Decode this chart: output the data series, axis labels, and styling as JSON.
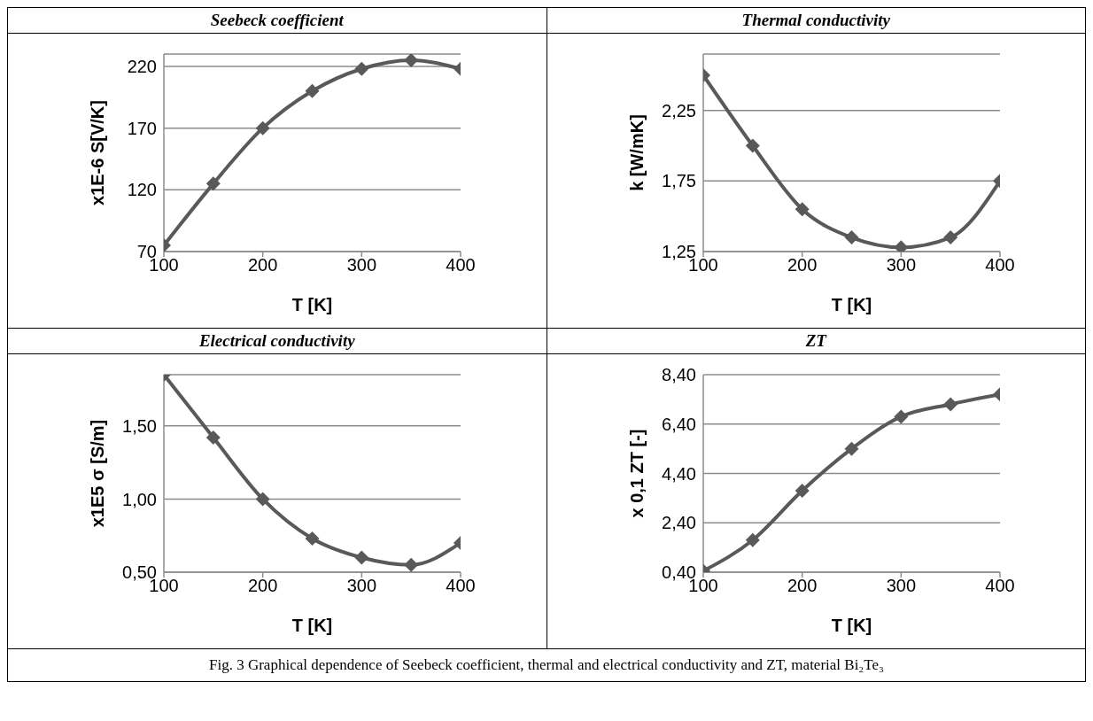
{
  "chart_data": [
    {
      "type": "line",
      "title": "Seebeck coefficient",
      "xlabel": "T [K]",
      "ylabel": "x1E-6 S[V/K]",
      "x": [
        100,
        150,
        200,
        250,
        300,
        350,
        400
      ],
      "values": [
        75,
        125,
        170,
        200,
        218,
        225,
        218
      ],
      "color": "#595959",
      "marker": "diamond",
      "grid": "y",
      "xlim": [
        100,
        400
      ],
      "xticks": [
        100,
        200,
        300,
        400
      ],
      "ylim": [
        70,
        230
      ],
      "yticks": [
        70,
        120,
        170,
        220
      ]
    },
    {
      "type": "line",
      "title": "Thermal conductivity",
      "xlabel": "T [K]",
      "ylabel": "k [W/mK]",
      "x": [
        100,
        150,
        200,
        250,
        300,
        350,
        400
      ],
      "values": [
        2.5,
        2.0,
        1.55,
        1.35,
        1.28,
        1.35,
        1.75
      ],
      "color": "#595959",
      "marker": "diamond",
      "grid": "y",
      "xlim": [
        100,
        400
      ],
      "xticks": [
        100,
        200,
        300,
        400
      ],
      "ylim": [
        1.25,
        2.65
      ],
      "yticks": [
        {
          "value": 1.25,
          "label": "1,25"
        },
        {
          "value": 1.75,
          "label": "1,75"
        },
        {
          "value": 2.25,
          "label": "2,25"
        }
      ]
    },
    {
      "type": "line",
      "title": "Electrical conductivity",
      "xlabel": "T [K]",
      "ylabel": "x1E5 σ [S/m]",
      "x": [
        100,
        150,
        200,
        250,
        300,
        350,
        400
      ],
      "values": [
        1.85,
        1.42,
        1.0,
        0.73,
        0.6,
        0.55,
        0.7
      ],
      "color": "#595959",
      "marker": "diamond",
      "grid": "y",
      "xlim": [
        100,
        400
      ],
      "xticks": [
        100,
        200,
        300,
        400
      ],
      "ylim": [
        0.5,
        1.85
      ],
      "yticks": [
        {
          "value": 0.5,
          "label": "0,50"
        },
        {
          "value": 1.0,
          "label": "1,00"
        },
        {
          "value": 1.5,
          "label": "1,50"
        }
      ]
    },
    {
      "type": "line",
      "title": "ZT",
      "xlabel": "T [K]",
      "ylabel": "x 0,1 ZT [-]",
      "x": [
        100,
        150,
        200,
        250,
        300,
        350,
        400
      ],
      "values": [
        0.45,
        1.7,
        3.7,
        5.4,
        6.7,
        7.2,
        7.6
      ],
      "color": "#595959",
      "marker": "diamond",
      "grid": "y",
      "xlim": [
        100,
        400
      ],
      "xticks": [
        100,
        200,
        300,
        400
      ],
      "ylim": [
        0.4,
        8.4
      ],
      "yticks": [
        {
          "value": 0.4,
          "label": "0,40"
        },
        {
          "value": 2.4,
          "label": "2,40"
        },
        {
          "value": 4.4,
          "label": "4,40"
        },
        {
          "value": 6.4,
          "label": "6,40"
        },
        {
          "value": 8.4,
          "label": "8,40"
        }
      ],
      "annotations": [
        "Fig. 3 Graphical dependence of Seebeck coefficient, thermal and electrical conductivity and ZT, material Bi₂Te₃"
      ]
    }
  ]
}
